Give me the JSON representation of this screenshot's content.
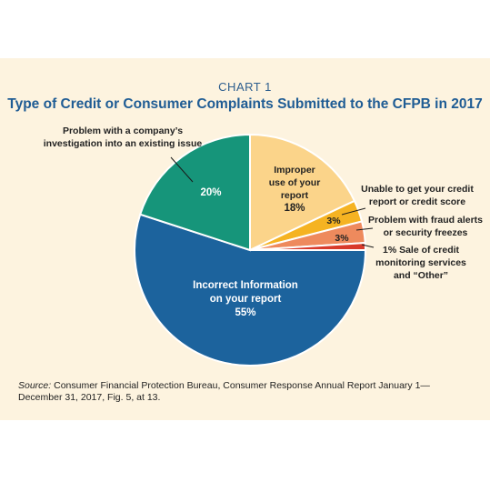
{
  "header": {
    "chart_label": "CHART 1",
    "title": "Type of Credit or Consumer Complaints Submitted to the CFPB in 2017"
  },
  "source": {
    "label": "Source:",
    "text": "Consumer Financial Protection Bureau, Consumer Response Annual Report January 1—December 31, 2017, Fig. 5, at 13."
  },
  "colors": {
    "background": "#fdf3df",
    "title": "#1f5c94",
    "slice_incorrect": "#1c639d",
    "slice_investigation": "#16957a",
    "slice_improper": "#fbd48a",
    "slice_unable": "#f5b322",
    "slice_fraud": "#ee8a5d",
    "slice_sale": "#d83a2b"
  },
  "chart_data": {
    "type": "pie",
    "start_angle_deg": 0,
    "direction": "clockwise",
    "slices": [
      {
        "key": "improper",
        "label_lines": [
          "Improper",
          "use of your",
          "report"
        ],
        "value_label": "18%",
        "value": 18,
        "color": "#fbd48a"
      },
      {
        "key": "unable",
        "label_lines": [
          "Unable to get your credit",
          "report or credit score"
        ],
        "value_label": "3%",
        "value": 3,
        "color": "#f5b322"
      },
      {
        "key": "fraud",
        "label_lines": [
          "Problem with fraud alerts",
          "or security freezes"
        ],
        "value_label": "3%",
        "value": 3,
        "color": "#ee8a5d"
      },
      {
        "key": "sale",
        "label_lines": [
          "1%  Sale of credit",
          "monitoring services",
          "and “Other”"
        ],
        "value_label": "",
        "value": 1,
        "color": "#d83a2b"
      },
      {
        "key": "incorrect",
        "label_lines": [
          "Incorrect Information",
          "on your report"
        ],
        "value_label": "55%",
        "value": 55,
        "color": "#1c639d"
      },
      {
        "key": "investigation",
        "label_lines": [
          "Problem with a company’s",
          "investigation into an existing issue"
        ],
        "value_label": "20%",
        "value": 20,
        "color": "#16957a"
      }
    ]
  }
}
